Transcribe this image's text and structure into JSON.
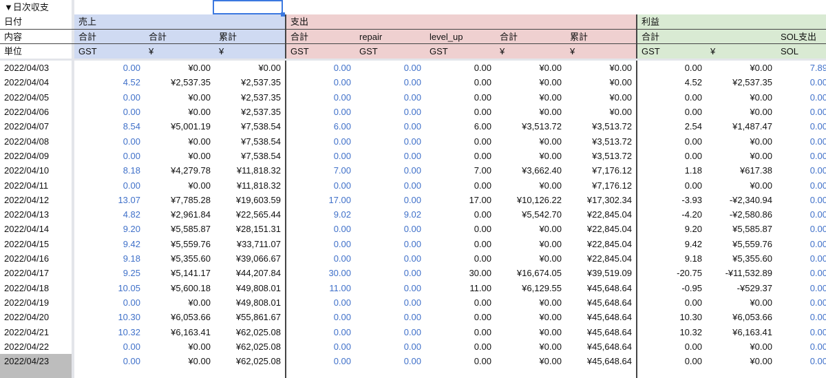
{
  "sheet": {
    "section_title": "▼日次収支"
  },
  "header": {
    "row_labels": [
      "日付",
      "内容",
      "単位"
    ],
    "groups": {
      "sales": "売上",
      "expense": "支出",
      "profit": "利益"
    },
    "content": [
      "合計",
      "合計",
      "累計",
      "合計",
      "repair",
      "level_up",
      "合計",
      "累計",
      "合計",
      "",
      "SOL支出"
    ],
    "units": [
      "GST",
      "¥",
      "¥",
      "GST",
      "GST",
      "GST",
      "¥",
      "¥",
      "GST",
      "¥",
      "SOL"
    ]
  },
  "colors": {
    "sales": "#cfdaf2",
    "expense": "#efd0d0",
    "profit": "#d9ead3",
    "blue_text": "#3f70c9"
  },
  "rows": [
    [
      "2022/04/03",
      "0.00",
      "¥0.00",
      "¥0.00",
      "0.00",
      "0.00",
      "0.00",
      "¥0.00",
      "¥0.00",
      "0.00",
      "¥0.00",
      "7.89"
    ],
    [
      "2022/04/04",
      "4.52",
      "¥2,537.35",
      "¥2,537.35",
      "0.00",
      "0.00",
      "0.00",
      "¥0.00",
      "¥0.00",
      "4.52",
      "¥2,537.35",
      "0.00"
    ],
    [
      "2022/04/05",
      "0.00",
      "¥0.00",
      "¥2,537.35",
      "0.00",
      "0.00",
      "0.00",
      "¥0.00",
      "¥0.00",
      "0.00",
      "¥0.00",
      "0.00"
    ],
    [
      "2022/04/06",
      "0.00",
      "¥0.00",
      "¥2,537.35",
      "0.00",
      "0.00",
      "0.00",
      "¥0.00",
      "¥0.00",
      "0.00",
      "¥0.00",
      "0.00"
    ],
    [
      "2022/04/07",
      "8.54",
      "¥5,001.19",
      "¥7,538.54",
      "6.00",
      "0.00",
      "6.00",
      "¥3,513.72",
      "¥3,513.72",
      "2.54",
      "¥1,487.47",
      "0.00"
    ],
    [
      "2022/04/08",
      "0.00",
      "¥0.00",
      "¥7,538.54",
      "0.00",
      "0.00",
      "0.00",
      "¥0.00",
      "¥3,513.72",
      "0.00",
      "¥0.00",
      "0.00"
    ],
    [
      "2022/04/09",
      "0.00",
      "¥0.00",
      "¥7,538.54",
      "0.00",
      "0.00",
      "0.00",
      "¥0.00",
      "¥3,513.72",
      "0.00",
      "¥0.00",
      "0.00"
    ],
    [
      "2022/04/10",
      "8.18",
      "¥4,279.78",
      "¥11,818.32",
      "7.00",
      "0.00",
      "7.00",
      "¥3,662.40",
      "¥7,176.12",
      "1.18",
      "¥617.38",
      "0.00"
    ],
    [
      "2022/04/11",
      "0.00",
      "¥0.00",
      "¥11,818.32",
      "0.00",
      "0.00",
      "0.00",
      "¥0.00",
      "¥7,176.12",
      "0.00",
      "¥0.00",
      "0.00"
    ],
    [
      "2022/04/12",
      "13.07",
      "¥7,785.28",
      "¥19,603.59",
      "17.00",
      "0.00",
      "17.00",
      "¥10,126.22",
      "¥17,302.34",
      "-3.93",
      "-¥2,340.94",
      "0.00"
    ],
    [
      "2022/04/13",
      "4.82",
      "¥2,961.84",
      "¥22,565.44",
      "9.02",
      "9.02",
      "0.00",
      "¥5,542.70",
      "¥22,845.04",
      "-4.20",
      "-¥2,580.86",
      "0.00"
    ],
    [
      "2022/04/14",
      "9.20",
      "¥5,585.87",
      "¥28,151.31",
      "0.00",
      "0.00",
      "0.00",
      "¥0.00",
      "¥22,845.04",
      "9.20",
      "¥5,585.87",
      "0.00"
    ],
    [
      "2022/04/15",
      "9.42",
      "¥5,559.76",
      "¥33,711.07",
      "0.00",
      "0.00",
      "0.00",
      "¥0.00",
      "¥22,845.04",
      "9.42",
      "¥5,559.76",
      "0.00"
    ],
    [
      "2022/04/16",
      "9.18",
      "¥5,355.60",
      "¥39,066.67",
      "0.00",
      "0.00",
      "0.00",
      "¥0.00",
      "¥22,845.04",
      "9.18",
      "¥5,355.60",
      "0.00"
    ],
    [
      "2022/04/17",
      "9.25",
      "¥5,141.17",
      "¥44,207.84",
      "30.00",
      "0.00",
      "30.00",
      "¥16,674.05",
      "¥39,519.09",
      "-20.75",
      "-¥11,532.89",
      "0.00"
    ],
    [
      "2022/04/18",
      "10.05",
      "¥5,600.18",
      "¥49,808.01",
      "11.00",
      "0.00",
      "11.00",
      "¥6,129.55",
      "¥45,648.64",
      "-0.95",
      "-¥529.37",
      "0.00"
    ],
    [
      "2022/04/19",
      "0.00",
      "¥0.00",
      "¥49,808.01",
      "0.00",
      "0.00",
      "0.00",
      "¥0.00",
      "¥45,648.64",
      "0.00",
      "¥0.00",
      "0.00"
    ],
    [
      "2022/04/20",
      "10.30",
      "¥6,053.66",
      "¥55,861.67",
      "0.00",
      "0.00",
      "0.00",
      "¥0.00",
      "¥45,648.64",
      "10.30",
      "¥6,053.66",
      "0.00"
    ],
    [
      "2022/04/21",
      "10.32",
      "¥6,163.41",
      "¥62,025.08",
      "0.00",
      "0.00",
      "0.00",
      "¥0.00",
      "¥45,648.64",
      "10.32",
      "¥6,163.41",
      "0.00"
    ],
    [
      "2022/04/22",
      "0.00",
      "¥0.00",
      "¥62,025.08",
      "0.00",
      "0.00",
      "0.00",
      "¥0.00",
      "¥45,648.64",
      "0.00",
      "¥0.00",
      "0.00"
    ],
    [
      "2022/04/23",
      "0.00",
      "¥0.00",
      "¥62,025.08",
      "0.00",
      "0.00",
      "0.00",
      "¥0.00",
      "¥45,648.64",
      "0.00",
      "¥0.00",
      "0.00"
    ]
  ],
  "selected_date_row": "2022/04/23"
}
